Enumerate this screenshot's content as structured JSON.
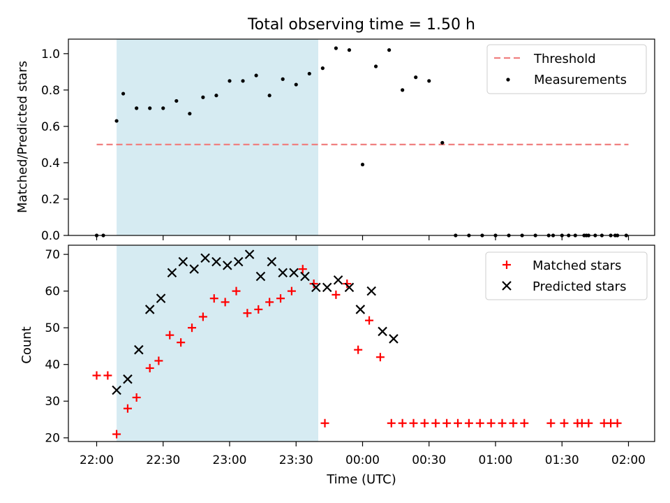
{
  "title": "Total observing time = 1.50 h",
  "xlabel": "Time (UTC)",
  "colors": {
    "shade": "#add8e6",
    "threshold": "#f08080",
    "matched": "#ff0000",
    "predicted": "#000000",
    "measurement": "#000000"
  },
  "chart_data": [
    {
      "type": "scatter",
      "ylabel": "Matched/Predicted stars",
      "ylim": [
        0,
        1.08
      ],
      "yticks": [
        "0.0",
        "0.2",
        "0.4",
        "0.6",
        "0.8",
        "1.0"
      ],
      "shaded_region": [
        "22:09",
        "23:40"
      ],
      "legend_position": "top-right",
      "threshold": {
        "name": "Threshold",
        "value": 0.5,
        "x_range": [
          "22:00",
          "24:00+01:59"
        ]
      },
      "series": [
        {
          "name": "Measurements",
          "points": [
            [
              "22:00",
              0.0
            ],
            [
              "22:03",
              0.0
            ],
            [
              "22:09",
              0.63
            ],
            [
              "22:12",
              0.78
            ],
            [
              "22:18",
              0.7
            ],
            [
              "22:24",
              0.7
            ],
            [
              "22:30",
              0.7
            ],
            [
              "22:36",
              0.74
            ],
            [
              "22:42",
              0.67
            ],
            [
              "22:48",
              0.76
            ],
            [
              "22:54",
              0.77
            ],
            [
              "23:00",
              0.85
            ],
            [
              "23:06",
              0.85
            ],
            [
              "23:12",
              0.88
            ],
            [
              "23:18",
              0.77
            ],
            [
              "23:24",
              0.86
            ],
            [
              "23:30",
              0.83
            ],
            [
              "23:36",
              0.89
            ],
            [
              "23:42",
              0.92
            ],
            [
              "23:48",
              1.03
            ],
            [
              "23:54",
              1.02
            ],
            [
              "00:00",
              0.39
            ],
            [
              "00:06",
              0.93
            ],
            [
              "00:12",
              1.02
            ],
            [
              "00:18",
              0.8
            ],
            [
              "00:24",
              0.87
            ],
            [
              "00:30",
              0.85
            ],
            [
              "00:36",
              0.51
            ],
            [
              "00:42",
              0.0
            ],
            [
              "00:48",
              0.0
            ],
            [
              "00:54",
              0.0
            ],
            [
              "01:00",
              0.0
            ],
            [
              "01:06",
              0.0
            ],
            [
              "01:12",
              0.0
            ],
            [
              "01:18",
              0.0
            ],
            [
              "01:24",
              0.0
            ],
            [
              "01:30",
              0.0
            ],
            [
              "01:36",
              0.0
            ],
            [
              "01:42",
              0.0
            ],
            [
              "01:48",
              0.0
            ],
            [
              "01:54",
              0.0
            ],
            [
              "01:26",
              0.0
            ],
            [
              "01:33",
              0.0
            ],
            [
              "01:40",
              0.0
            ],
            [
              "01:41",
              0.0
            ],
            [
              "01:45",
              0.0
            ],
            [
              "01:52",
              0.0
            ],
            [
              "01:55",
              0.0
            ],
            [
              "01:59",
              0.0
            ]
          ]
        }
      ]
    },
    {
      "type": "scatter",
      "ylabel": "Count",
      "ylim": [
        19,
        72.5
      ],
      "yticks": [
        "20",
        "30",
        "40",
        "50",
        "60",
        "70"
      ],
      "xticks": [
        "22:00",
        "22:30",
        "23:00",
        "23:30",
        "00:00",
        "00:30",
        "01:00",
        "01:30",
        "02:00"
      ],
      "shaded_region": [
        "22:09",
        "23:40"
      ],
      "legend_position": "top-right",
      "series": [
        {
          "name": "Matched stars",
          "points": [
            [
              "22:00",
              37
            ],
            [
              "22:05",
              37
            ],
            [
              "22:09",
              21
            ],
            [
              "22:14",
              28
            ],
            [
              "22:18",
              31
            ],
            [
              "22:24",
              39
            ],
            [
              "22:28",
              41
            ],
            [
              "22:33",
              48
            ],
            [
              "22:38",
              46
            ],
            [
              "22:43",
              50
            ],
            [
              "22:48",
              53
            ],
            [
              "22:53",
              58
            ],
            [
              "22:58",
              57
            ],
            [
              "23:03",
              60
            ],
            [
              "23:08",
              54
            ],
            [
              "23:13",
              55
            ],
            [
              "23:18",
              57
            ],
            [
              "23:23",
              58
            ],
            [
              "23:28",
              60
            ],
            [
              "23:33",
              66
            ],
            [
              "23:38",
              62
            ],
            [
              "23:43",
              24
            ],
            [
              "23:48",
              59
            ],
            [
              "23:53",
              62
            ],
            [
              "23:58",
              44
            ],
            [
              "00:03",
              52
            ],
            [
              "00:08",
              42
            ],
            [
              "00:13",
              24
            ],
            [
              "00:18",
              24
            ],
            [
              "00:23",
              24
            ],
            [
              "00:28",
              24
            ],
            [
              "00:33",
              24
            ],
            [
              "00:38",
              24
            ],
            [
              "00:43",
              24
            ],
            [
              "00:48",
              24
            ],
            [
              "00:53",
              24
            ],
            [
              "00:58",
              24
            ],
            [
              "01:03",
              24
            ],
            [
              "01:08",
              24
            ],
            [
              "01:13",
              24
            ],
            [
              "01:25",
              24
            ],
            [
              "01:31",
              24
            ],
            [
              "01:37",
              24
            ],
            [
              "01:39",
              24
            ],
            [
              "01:42",
              24
            ],
            [
              "01:49",
              24
            ],
            [
              "01:52",
              24
            ],
            [
              "01:55",
              24
            ]
          ]
        },
        {
          "name": "Predicted stars",
          "points": [
            [
              "22:09",
              33
            ],
            [
              "22:14",
              36
            ],
            [
              "22:19",
              44
            ],
            [
              "22:24",
              55
            ],
            [
              "22:29",
              58
            ],
            [
              "22:34",
              65
            ],
            [
              "22:39",
              68
            ],
            [
              "22:44",
              66
            ],
            [
              "22:49",
              69
            ],
            [
              "22:54",
              68
            ],
            [
              "22:59",
              67
            ],
            [
              "23:04",
              68
            ],
            [
              "23:09",
              70
            ],
            [
              "23:14",
              64
            ],
            [
              "23:19",
              68
            ],
            [
              "23:24",
              65
            ],
            [
              "23:29",
              65
            ],
            [
              "23:34",
              64
            ],
            [
              "23:39",
              61
            ],
            [
              "23:44",
              61
            ],
            [
              "23:49",
              63
            ],
            [
              "23:54",
              61
            ],
            [
              "23:59",
              55
            ],
            [
              "00:04",
              60
            ],
            [
              "00:09",
              49
            ],
            [
              "00:14",
              47
            ]
          ]
        }
      ]
    }
  ]
}
